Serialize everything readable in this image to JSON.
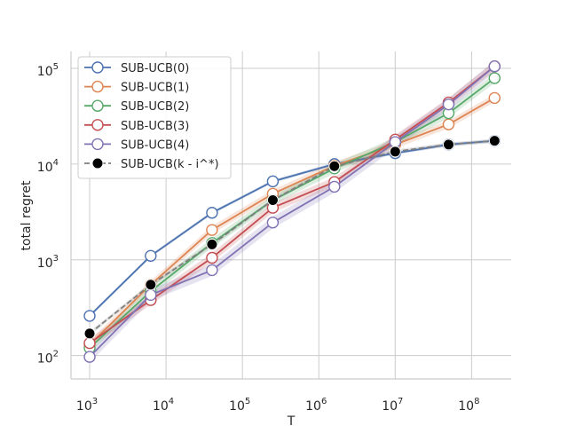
{
  "chart_data": {
    "type": "line",
    "xscale": "log",
    "yscale": "log",
    "xlabel": "T",
    "ylabel": "total regret",
    "xlim": [
      570,
      330000000
    ],
    "ylim": [
      57,
      150000
    ],
    "grid": true,
    "legend_position": "top-left",
    "x_ticks": [
      {
        "value": 1000,
        "base": "10",
        "exp": "3"
      },
      {
        "value": 10000,
        "base": "10",
        "exp": "4"
      },
      {
        "value": 100000,
        "base": "10",
        "exp": "5"
      },
      {
        "value": 1000000,
        "base": "10",
        "exp": "6"
      },
      {
        "value": 10000000,
        "base": "10",
        "exp": "7"
      },
      {
        "value": 100000000,
        "base": "10",
        "exp": "8"
      }
    ],
    "y_ticks": [
      {
        "value": 100,
        "base": "10",
        "exp": "2"
      },
      {
        "value": 1000,
        "base": "10",
        "exp": "3"
      },
      {
        "value": 10000,
        "base": "10",
        "exp": "4"
      },
      {
        "value": 100000,
        "base": "10",
        "exp": "5"
      }
    ],
    "x": [
      1000,
      6300,
      40000,
      250000,
      1600000,
      10000000,
      50000000,
      200000000
    ],
    "series": [
      {
        "name": "SUB-UCB(0)",
        "color": "#4c72b0",
        "marker": "open-circle",
        "dashed": false,
        "values": [
          260,
          1100,
          3100,
          6600,
          10000,
          13000,
          16000,
          17500
        ],
        "band": 0.04
      },
      {
        "name": "SUB-UCB(1)",
        "color": "#dd8452",
        "marker": "open-circle",
        "dashed": false,
        "values": [
          130,
          550,
          2050,
          4900,
          9600,
          16000,
          26000,
          49000
        ],
        "band": 0.1
      },
      {
        "name": "SUB-UCB(2)",
        "color": "#55a868",
        "marker": "open-circle",
        "dashed": false,
        "values": [
          120,
          470,
          1500,
          4200,
          9000,
          17000,
          34000,
          79000
        ],
        "band": 0.12
      },
      {
        "name": "SUB-UCB(3)",
        "color": "#c44e52",
        "marker": "open-circle",
        "dashed": false,
        "values": [
          135,
          380,
          1050,
          3500,
          6500,
          18000,
          44000,
          105000
        ],
        "band": 0.12
      },
      {
        "name": "SUB-UCB(4)",
        "color": "#8172b3",
        "marker": "open-circle",
        "dashed": false,
        "values": [
          97,
          430,
          780,
          2450,
          5800,
          17000,
          42000,
          105000
        ],
        "band": 0.15
      },
      {
        "name": "SUB-UCB(k - i^*)",
        "color": "#7f7f7f",
        "marker": "filled-circle",
        "marker_color": "#000000",
        "dashed": true,
        "values": [
          170,
          550,
          1450,
          4200,
          9500,
          13500,
          16000,
          17500
        ],
        "band": 0.05
      }
    ]
  }
}
